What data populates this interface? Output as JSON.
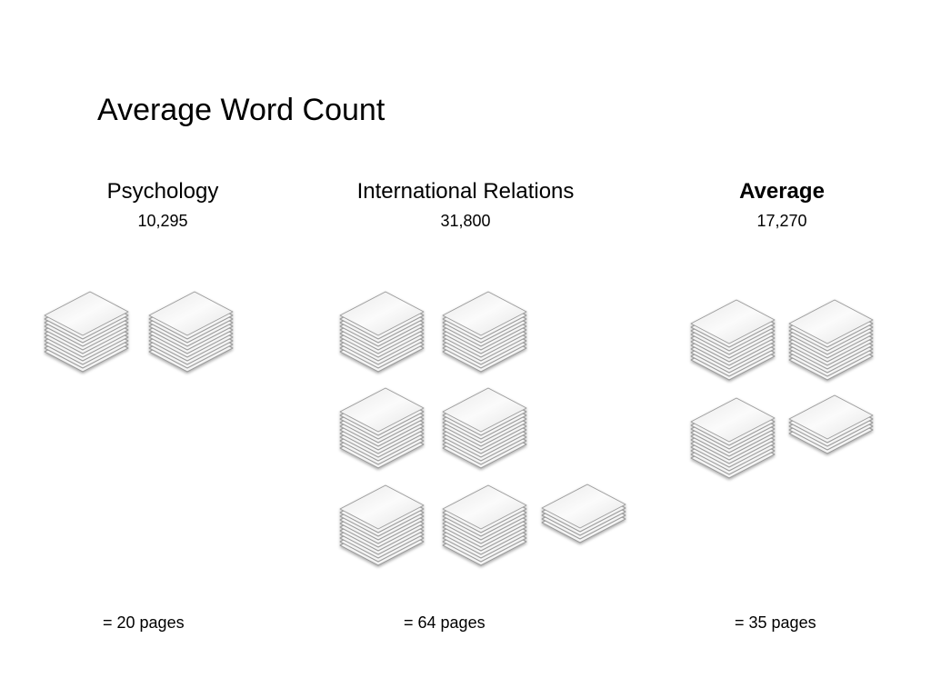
{
  "title": "Average Word Count",
  "columns": [
    {
      "name": "Psychology",
      "count": "10,295",
      "pages": "= 20 pages",
      "emphasis": false
    },
    {
      "name": "International Relations",
      "count": "31,800",
      "pages": "= 64 pages",
      "emphasis": false
    },
    {
      "name": "Average",
      "count": "17,270",
      "pages": "= 35 pages",
      "emphasis": true
    }
  ],
  "colors": {
    "paper_top": "#f4f4f4",
    "paper_edge": "#9a9a9a",
    "background": "#ffffff"
  }
}
